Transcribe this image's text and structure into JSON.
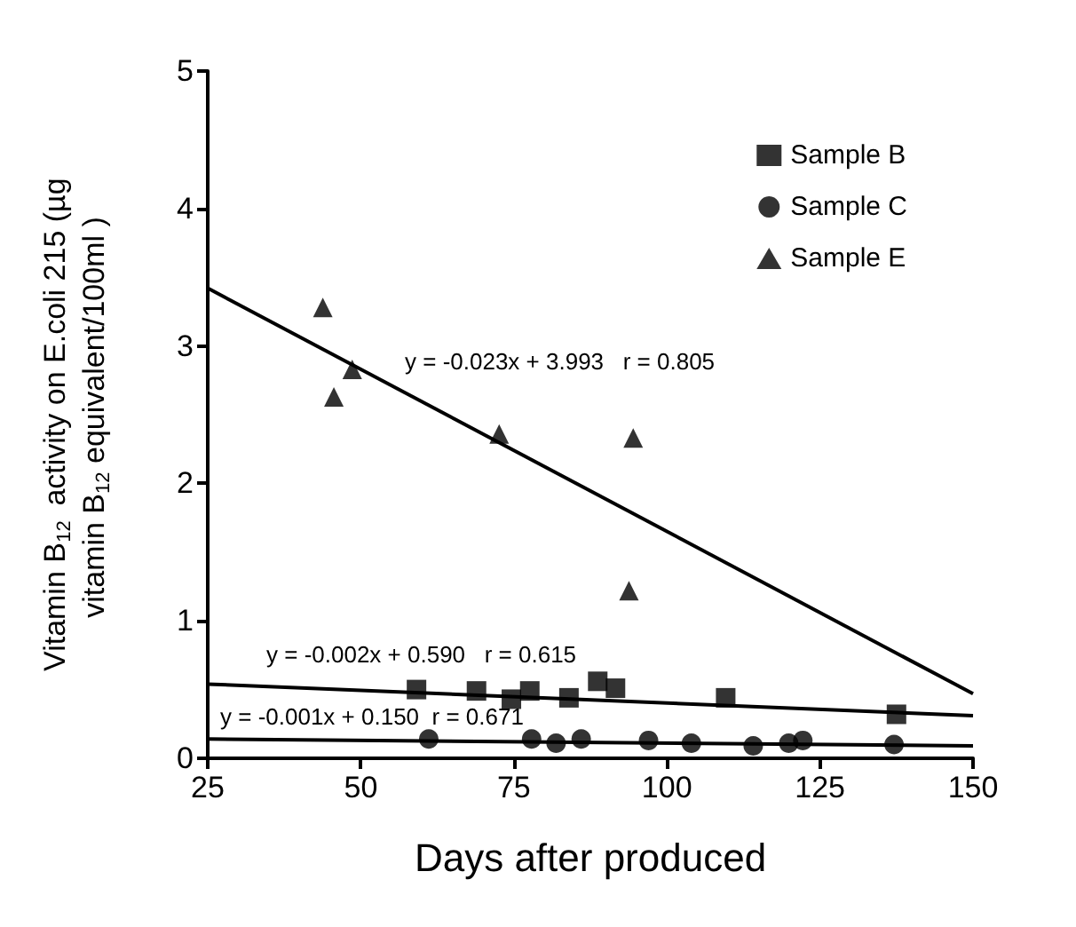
{
  "chart_data": {
    "type": "scatter",
    "xlabel": "Days after produced",
    "ylabel": "Vitamin B$_{12}$ activity on E.coli 215 (µg vitamin B$_{12}$ equivalent/100ml )",
    "xlim": [
      25,
      150
    ],
    "xticks": [
      25,
      50,
      75,
      100,
      125,
      150
    ],
    "ylim": [
      0,
      5
    ],
    "yticks": [
      0,
      1,
      2,
      3,
      4,
      5
    ],
    "grid": false,
    "legend": "top right",
    "series": [
      {
        "name": "Sample B",
        "color": "#000000",
        "marker": "square",
        "x": [
          59.1,
          68.9,
          74.6,
          77.6,
          84.0,
          88.7,
          91.6,
          109.6,
          137.5
        ],
        "values": [
          0.5,
          0.49,
          0.43,
          0.49,
          0.44,
          0.56,
          0.51,
          0.44,
          0.32
        ]
      },
      {
        "name": "Sample C",
        "color": "#000000",
        "marker": "circle",
        "x": [
          61.1,
          77.9,
          81.9,
          86.0,
          97.0,
          104.0,
          114.1,
          119.9,
          122.2,
          137.1
        ],
        "values": [
          0.14,
          0.14,
          0.11,
          0.14,
          0.13,
          0.11,
          0.09,
          0.11,
          0.13,
          0.1
        ]
      },
      {
        "name": "Sample E",
        "color": "#000000",
        "marker": "triangle",
        "x": [
          43.8,
          45.6,
          48.6,
          72.6,
          94.5,
          93.8
        ],
        "values": [
          3.28,
          2.63,
          2.83,
          2.36,
          2.33,
          1.22
        ]
      },
      {
        "type": "line",
        "color": "#000000",
        "marker": "none",
        "x": [
          25,
          150
        ],
        "values": [
          0.54,
          0.31
        ]
      },
      {
        "type": "line",
        "color": "#000000",
        "marker": "none",
        "x": [
          25,
          150
        ],
        "values": [
          0.14,
          0.09
        ]
      },
      {
        "type": "line",
        "color": "#000000",
        "marker": "none",
        "x": [
          25,
          150
        ],
        "values": [
          3.42,
          0.47
        ]
      }
    ],
    "annotations": [
      "y = -0.023x + 3.993   r = 0.805",
      "y = -0.002x + 0.590   r = 0.615",
      "y = -0.001x + 0.150  r = 0.671"
    ]
  }
}
